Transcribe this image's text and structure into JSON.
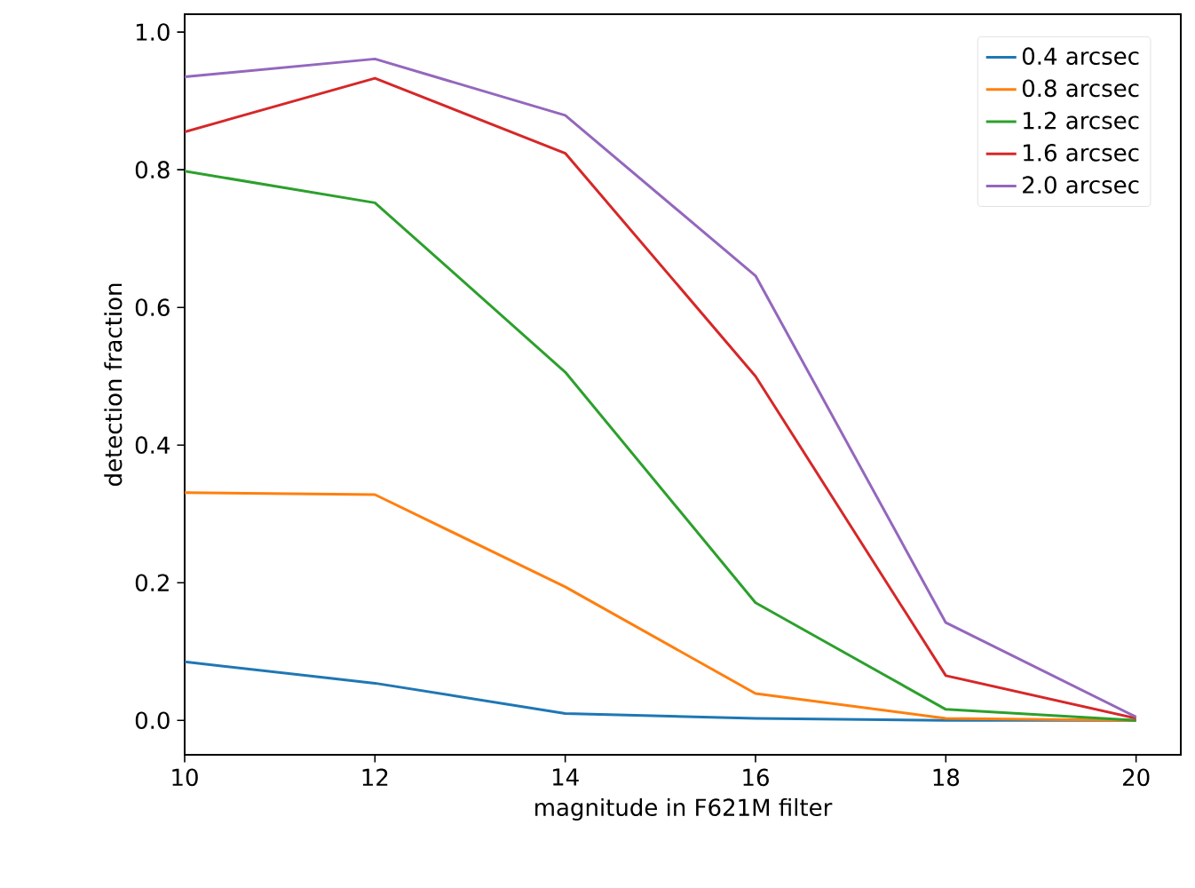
{
  "chart_data": {
    "type": "line",
    "xlabel": "magnitude in F621M filter",
    "ylabel": "detection fraction",
    "x": [
      10,
      12,
      14,
      16,
      18,
      20
    ],
    "series": [
      {
        "name": "0.4 arcsec",
        "color": "#1f77b4",
        "values": [
          0.085,
          0.054,
          0.01,
          0.003,
          0.0,
          0.0
        ]
      },
      {
        "name": "0.8 arcsec",
        "color": "#ff7f0e",
        "values": [
          0.331,
          0.328,
          0.194,
          0.039,
          0.003,
          0.0
        ]
      },
      {
        "name": "1.2 arcsec",
        "color": "#2ca02c",
        "values": [
          0.798,
          0.752,
          0.506,
          0.171,
          0.016,
          0.0
        ]
      },
      {
        "name": "1.6 arcsec",
        "color": "#d62728",
        "values": [
          0.855,
          0.933,
          0.824,
          0.5,
          0.065,
          0.003
        ]
      },
      {
        "name": "2.0 arcsec",
        "color": "#9467bd",
        "values": [
          0.935,
          0.961,
          0.879,
          0.646,
          0.142,
          0.005
        ]
      }
    ],
    "xlim": [
      10,
      20.47
    ],
    "ylim": [
      -0.05,
      1.026
    ],
    "xticks": [
      10,
      12,
      14,
      16,
      18,
      20
    ],
    "yticks": [
      {
        "value": 0,
        "label": "0.0"
      },
      {
        "value": 0.2,
        "label": "0.2"
      },
      {
        "value": 0.4,
        "label": "0.4"
      },
      {
        "value": 0.6,
        "label": "0.6"
      },
      {
        "value": 0.8,
        "label": "0.8"
      },
      {
        "value": 1.0,
        "label": "1.0"
      }
    ],
    "legend": "top right",
    "marker": "none",
    "grid": false
  }
}
